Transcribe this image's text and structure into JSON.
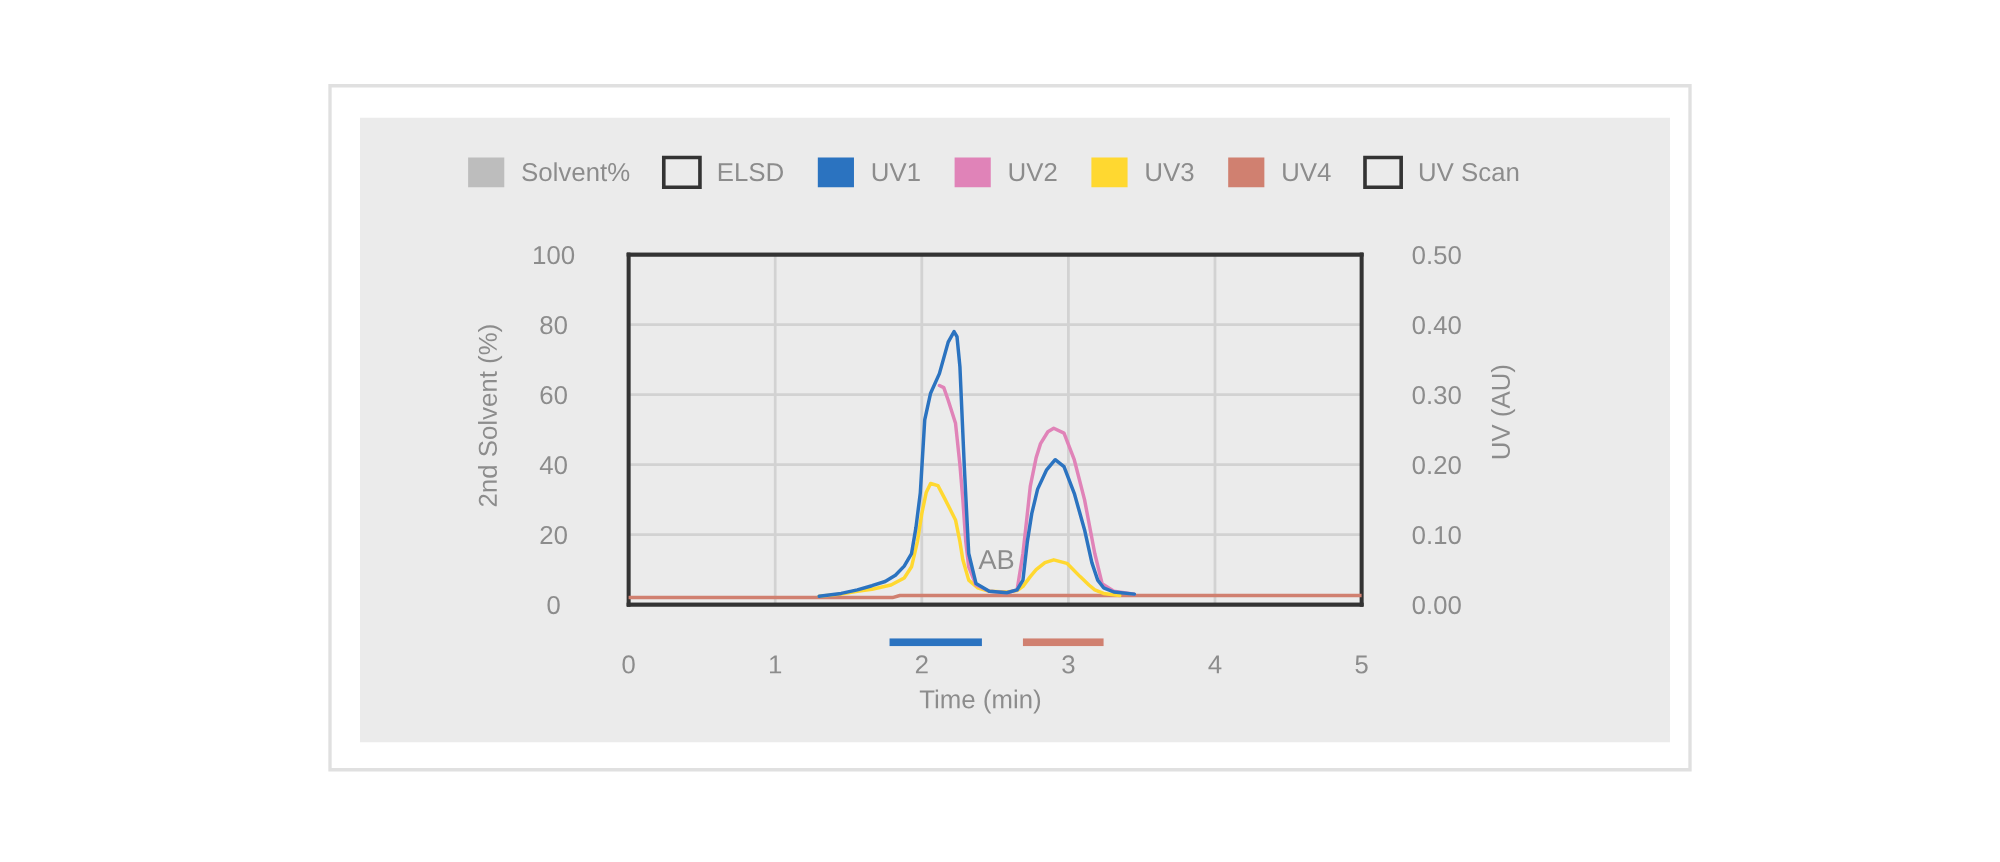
{
  "chart_data": [
    {
      "type": "line",
      "xlabel": "Time (min)",
      "ylabel": "2nd Solvent (%)",
      "y2label": "UV (AU)",
      "xlim": [
        0,
        5
      ],
      "xticks": [
        0,
        1,
        2,
        3,
        4,
        5
      ],
      "ylim": [
        0,
        100
      ],
      "yticks": [
        0,
        20,
        40,
        60,
        80,
        100
      ],
      "y2lim": [
        0,
        0.5
      ],
      "y2ticks": [
        {
          "value": 0,
          "label": "0.00"
        },
        {
          "value": 0.1,
          "label": "0.10"
        },
        {
          "value": 0.2,
          "label": "0.20"
        },
        {
          "value": 0.3,
          "label": "0.30"
        },
        {
          "value": 0.4,
          "label": "0.40"
        },
        {
          "value": 0.5,
          "label": "0.50"
        }
      ],
      "grid": true,
      "legend": "top",
      "annotations": [
        "AB"
      ],
      "series": [
        {
          "name": "Solvent%",
          "color": "#bdbdbd"
        },
        {
          "name": "ELSD",
          "color": null
        },
        {
          "name": "UV1",
          "color": "#2b73c0",
          "axis": "y2",
          "x": [
            1.3,
            1.45,
            1.56,
            1.66,
            1.75,
            1.82,
            1.88,
            1.93,
            1.96,
            1.99,
            2.02,
            2.06,
            2.12,
            2.18,
            2.22,
            2.24,
            2.26,
            2.29,
            2.32,
            2.37,
            2.46,
            2.58,
            2.65,
            2.69,
            2.72,
            2.75,
            2.79,
            2.85,
            2.91,
            2.97,
            3.04,
            3.11,
            3.16,
            3.2,
            3.24,
            3.31,
            3.45
          ],
          "values": [
            0.012,
            0.016,
            0.021,
            0.027,
            0.033,
            0.042,
            0.055,
            0.073,
            0.11,
            0.16,
            0.264,
            0.302,
            0.33,
            0.375,
            0.39,
            0.383,
            0.34,
            0.197,
            0.073,
            0.03,
            0.019,
            0.017,
            0.021,
            0.035,
            0.09,
            0.13,
            0.165,
            0.192,
            0.207,
            0.197,
            0.159,
            0.107,
            0.06,
            0.035,
            0.024,
            0.018,
            0.015
          ]
        },
        {
          "name": "UV2",
          "color": "#e083b8",
          "axis": "y2",
          "x": [
            2.12,
            2.15,
            2.18,
            2.23,
            2.26,
            2.28,
            2.3,
            2.32,
            2.37,
            2.46,
            2.58,
            2.65,
            2.69,
            2.72,
            2.74,
            2.78,
            2.81,
            2.86,
            2.9,
            2.97,
            3.04,
            3.11,
            3.18,
            3.23,
            3.31,
            3.45
          ],
          "values": [
            0.313,
            0.31,
            0.292,
            0.259,
            0.2,
            0.15,
            0.09,
            0.054,
            0.028,
            0.019,
            0.017,
            0.021,
            0.073,
            0.13,
            0.169,
            0.21,
            0.23,
            0.247,
            0.252,
            0.245,
            0.207,
            0.15,
            0.073,
            0.03,
            0.019,
            0.015
          ]
        },
        {
          "name": "UV3",
          "color": "#ffd830",
          "axis": "y2",
          "x": [
            1.3,
            1.45,
            1.56,
            1.66,
            1.79,
            1.88,
            1.93,
            1.97,
            2.0,
            2.03,
            2.06,
            2.11,
            2.16,
            2.23,
            2.26,
            2.28,
            2.32,
            2.38,
            2.46,
            2.58,
            2.65,
            2.69,
            2.74,
            2.78,
            2.84,
            2.9,
            2.99,
            3.08,
            3.14,
            3.18,
            3.24,
            3.35
          ],
          "values": [
            0.012,
            0.015,
            0.019,
            0.022,
            0.028,
            0.038,
            0.054,
            0.09,
            0.13,
            0.16,
            0.173,
            0.17,
            0.15,
            0.121,
            0.09,
            0.064,
            0.035,
            0.024,
            0.019,
            0.018,
            0.02,
            0.026,
            0.04,
            0.05,
            0.06,
            0.064,
            0.059,
            0.04,
            0.028,
            0.021,
            0.016,
            0.013
          ]
        },
        {
          "name": "UV4",
          "color": "#d08070",
          "axis": "y2",
          "x": [
            0,
            1.8,
            1.85,
            5
          ],
          "values": [
            0.01,
            0.01,
            0.013,
            0.013
          ]
        },
        {
          "name": "UV Scan",
          "color": null
        }
      ]
    },
    {
      "type": "bar",
      "orientation": "horizontal",
      "categories": [
        null
      ],
      "xlim": [
        0,
        5
      ],
      "tick_labels": false,
      "series": [
        {
          "color": "#2b73c0",
          "base": [
            1.78
          ],
          "values": [
            0.63
          ]
        },
        {
          "color": "#d08070",
          "base": [
            2.69
          ],
          "values": [
            0.55
          ]
        }
      ]
    }
  ]
}
